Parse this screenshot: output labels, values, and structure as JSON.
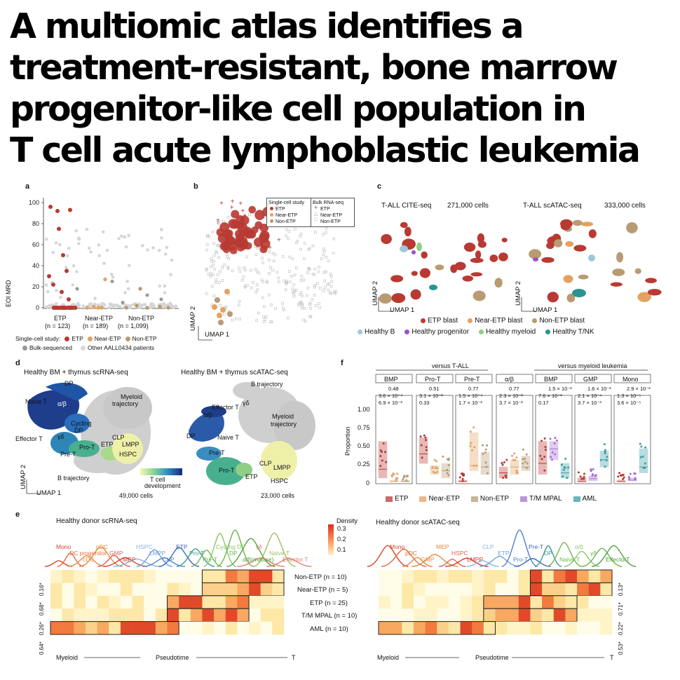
{
  "title_lines": [
    "A multiomic atlas identifies a",
    "treatment-resistant, bone marrow",
    "progenitor-like cell population in",
    "T cell acute lymphoblastic leukemia"
  ],
  "colors": {
    "etp": "#b83a32",
    "near_etp": "#e3a262",
    "non_etp": "#b89a73",
    "healthy_b": "#9fc6dc",
    "healthy_progenitor": "#9a52c7",
    "healthy_myeloid": "#8fce85",
    "healthy_tnk": "#2a9590",
    "tm_mpal": "#a76fd2",
    "aml": "#3a9ea6"
  },
  "panel_a": {
    "label": "a",
    "ylabel": "EOI MRD",
    "yticks": [
      "100",
      "80",
      "60",
      "40",
      "20",
      "0"
    ],
    "groups": [
      {
        "name": "ETP",
        "n": "(n = 123)"
      },
      {
        "name": "Near-ETP",
        "n": "(n = 189)"
      },
      {
        "name": "Non-ETP",
        "n": "(n = 1,099)"
      }
    ],
    "legend_prefix": "Single-cell study:",
    "legend_items": [
      "ETP",
      "Near-ETP",
      "Non-ETP"
    ],
    "legend2_items": [
      "Bulk-sequenced",
      "Other AALL0434 patients"
    ]
  },
  "panel_b": {
    "label": "b",
    "legend_single": {
      "title": "Single-cell study",
      "items": [
        "ETP",
        "Near-ETP",
        "Non-ETP"
      ]
    },
    "legend_bulk": {
      "title": "Bulk RNA-seq",
      "items": [
        "ETP",
        "Near-ETP",
        "Non-ETP"
      ]
    },
    "axis_x": "UMAP 1",
    "axis_y": "UMAP 2"
  },
  "panel_c": {
    "label": "c",
    "left_title": "T-ALL CITE-seq",
    "left_count": "271,000 cells",
    "right_title": "T-ALL scATAC-seq",
    "right_count": "333,000 cells",
    "axis_x": "UMAP 1",
    "axis_y": "UMAP 2",
    "legend_row1": [
      "ETP blast",
      "Near-ETP blast",
      "Non-ETP blast"
    ],
    "legend_row2": [
      "Healthy B",
      "Healthy progenitor",
      "Healthy myeloid",
      "Healthy T/NK"
    ]
  },
  "panel_d": {
    "label": "d",
    "left_title": "Healthy BM + thymus scRNA-seq",
    "right_title": "Healthy BM + thymus scATAC-seq",
    "left_labels": [
      "DP",
      "Naive T",
      "α/β",
      "Myeloid",
      "trajectory",
      "Cycling",
      "DP",
      "Effector T",
      "γδ",
      "CLP",
      "Pro-T",
      "ETP",
      "LMPP",
      "Pre-T",
      "HSPC",
      "B trajectory"
    ],
    "right_labels": [
      "B trajectory",
      "γδ",
      "Effector T",
      "α/β",
      "Myeloid",
      "trajectory",
      "DP",
      "Naive T",
      "Pre-T",
      "Pro-T",
      "CLP",
      "LMPP",
      "ETP",
      "HSPC"
    ],
    "colorbar_label1": "T cell",
    "colorbar_label2": "development",
    "left_count": "49,000 cells",
    "right_count": "23,000 cells",
    "axis_x": "UMAP 1",
    "axis_y": "UMAP 2"
  },
  "panel_f": {
    "label": "f",
    "header_left": "versus T-ALL",
    "header_right": "versus myeloid leukemia",
    "ylabel": "Proportion",
    "yticks": [
      "1.00",
      "0.75",
      "0.50",
      "0.25",
      "0"
    ],
    "facets": [
      {
        "name": "BMP",
        "p": [
          "0.48",
          "3.6 × 10⁻⁴",
          "6.9 × 10⁻³"
        ]
      },
      {
        "name": "Pro-T",
        "p": [
          "0.51",
          "3.1 × 10⁻²",
          "0.33"
        ]
      },
      {
        "name": "Pre-T",
        "p": [
          "0.77",
          "1.5 × 10⁻⁴",
          "1.7 × 10⁻³"
        ]
      },
      {
        "name": "α/β",
        "p": [
          "0.77",
          "2.3 × 10⁻²",
          "3.7 × 10⁻²"
        ]
      },
      {
        "name": "BMP",
        "p": [
          "1.5 × 10⁻²",
          "7.6 × 10⁻²",
          "0.17"
        ]
      },
      {
        "name": "GMP",
        "p": [
          "1.6 × 10⁻²",
          "2.1 × 10⁻⁴",
          "3.7 × 10⁻³"
        ]
      },
      {
        "name": "Mono",
        "p": [
          "2.9 × 10⁻²",
          "1.3 × 10⁻⁵",
          "3.6 × 10⁻⁵"
        ]
      }
    ],
    "legend": [
      "ETP",
      "Near-ETP",
      "Non-ETP",
      "T/M MPAL",
      "AML"
    ]
  },
  "panel_e": {
    "label": "e",
    "left_title": "Healthy donor scRNA-seq",
    "right_title": "Healthy donor scATAC-seq",
    "density_label": "Density",
    "density_ticks": [
      "0.3",
      "0.2",
      "0.1"
    ],
    "left_peaks": [
      "Mono",
      "DC progenitor",
      "cDC",
      "pDC",
      "GMP",
      "MEP",
      "HSPC",
      "LMPP",
      "CLP",
      "ETP",
      "Pro-T",
      "Pre-T",
      "Cycling DP",
      "DP",
      "α/β(mature)",
      "γδ",
      "Naive T",
      "Effector T"
    ],
    "right_peaks": [
      "Mono",
      "pDC",
      "GMP",
      "MEP",
      "HSPC",
      "LMPP",
      "CLP",
      "ETP",
      "Pro-T",
      "Pre-T",
      "DP",
      "Naive T",
      "α/β",
      "γδ",
      "EffectorT"
    ],
    "rows": [
      "Non-ETP (n = 10)",
      "Near-ETP (n = 5)",
      "ETP (n = 25)",
      "T/M MPAL (n = 10)",
      "AML (n = 10)"
    ],
    "left_side_pvals": [
      "0.16*",
      "0.68*",
      "0.26*",
      "0.64*"
    ],
    "right_side_pvals": [
      "0.13*",
      "0.71*",
      "0.22*",
      "0.53*"
    ],
    "axis_left": "Myeloid",
    "axis_mid": "Pseudotime",
    "axis_right": "T"
  }
}
